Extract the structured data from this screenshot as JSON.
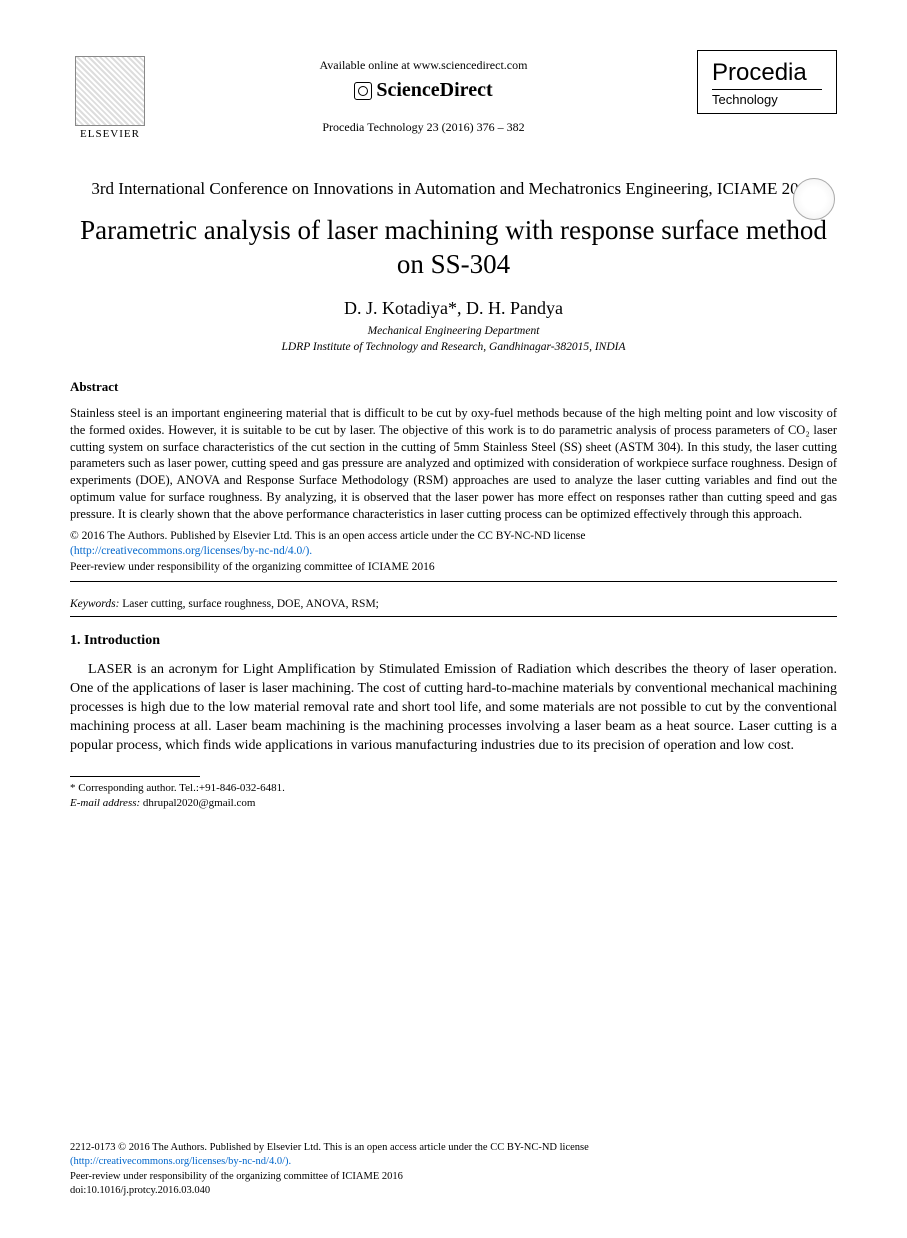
{
  "header": {
    "elsevier": "ELSEVIER",
    "available": "Available online at www.sciencedirect.com",
    "sciencedirect": "ScienceDirect",
    "journal_ref": "Procedia Technology 23 (2016) 376 – 382",
    "procedia": "Procedia",
    "procedia_sub": "Technology"
  },
  "conference": "3rd International Conference on Innovations in Automation and Mechatronics Engineering, ICIAME 2016",
  "title": "Parametric analysis of laser machining with response surface method on SS-304",
  "authors": "D. J. Kotadiya*, D. H. Pandya",
  "affiliation_dept": "Mechanical Engineering Department",
  "affiliation_inst": "LDRP Institute of Technology and Research, Gandhinagar-382015, INDIA",
  "abstract_label": "Abstract",
  "abstract_text": "Stainless steel is an important engineering material that is difficult to be cut by oxy-fuel methods because of the high melting point and low viscosity of the formed oxides. However, it is suitable to be cut by laser. The objective of this work is to do parametric analysis of process parameters of CO₂ laser cutting system on surface characteristics of the cut section in the cutting of 5mm Stainless Steel (SS) sheet (ASTM 304). In this study, the laser cutting parameters such as laser power, cutting speed and gas pressure are analyzed and optimized with consideration of workpiece surface roughness. Design of experiments (DOE), ANOVA and Response Surface Methodology (RSM) approaches are used to analyze the laser cutting variables and find out the optimum value for surface roughness. By analyzing, it is observed that the laser power has more effect on responses rather than cutting speed and gas pressure. It is clearly shown that the above performance characteristics in laser cutting process can be optimized effectively through this approach.",
  "copyright_line1": "© 2016 The Authors. Published by Elsevier Ltd. This is an open access article under the CC BY-NC-ND license",
  "copyright_link": "(http://creativecommons.org/licenses/by-nc-nd/4.0/).",
  "peer_review": "Peer-review under responsibility of the organizing committee of ICIAME 2016",
  "keywords_label": "Keywords:",
  "keywords": " Laser cutting, surface roughness, DOE, ANOVA, RSM;",
  "intro_head": "1. Introduction",
  "intro_text": "LASER is an acronym for Light Amplification by Stimulated Emission of Radiation which describes the theory of laser operation. One of the applications of laser is laser machining. The cost of cutting hard-to-machine materials by conventional mechanical machining processes is high due to the low material removal rate and short tool life, and some materials are not possible to cut by the conventional machining process at all. Laser beam machining is the machining processes involving a laser beam as a heat source. Laser cutting is a popular process, which finds wide applications in various manufacturing industries due to its precision of operation and low cost.",
  "corr_author": "* Corresponding author. Tel.:+91-846-032-6481.",
  "email_label": "E-mail address:",
  "email": " dhrupal2020@gmail.com",
  "footer": {
    "issn_line": "2212-0173 © 2016 The Authors. Published by Elsevier Ltd. This is an open access article under the CC BY-NC-ND license",
    "link": "(http://creativecommons.org/licenses/by-nc-nd/4.0/).",
    "peer": "Peer-review under responsibility of the organizing committee of ICIAME 2016",
    "doi": "doi:10.1016/j.protcy.2016.03.040"
  }
}
